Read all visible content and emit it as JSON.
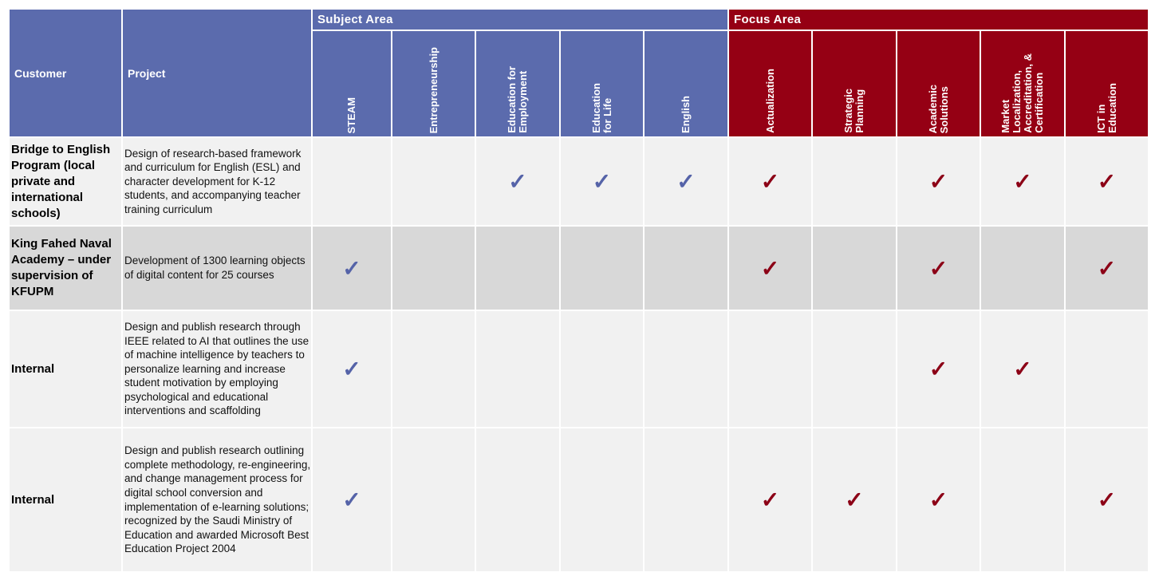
{
  "header": {
    "customer_label": "Customer",
    "project_label": "Project",
    "subject_area_label": "Subject Area",
    "focus_area_label": "Focus Area"
  },
  "subject_columns": [
    "STEAM",
    "Entrepreneurship",
    "Education for\nEmployment",
    "Education\nfor Life",
    "English"
  ],
  "focus_columns": [
    "Actualization",
    "Strategic\nPlanning",
    "Academic\nSolutions",
    "Market\nLocalization,\nAccreditation, &\nCertification",
    "ICT in\nEducation"
  ],
  "check_glyph": "✓",
  "colors": {
    "subject": "#5b6bad",
    "focus": "#950014",
    "subject_check": "#5563a8",
    "focus_check": "#8c0016"
  },
  "rows": [
    {
      "customer": "Bridge to English Program (local private and international schools)",
      "project": "Design of research-based framework and curriculum for English (ESL) and character development for K-12 students, and accompanying teacher training curriculum",
      "subject": [
        false,
        false,
        true,
        true,
        true
      ],
      "focus": [
        true,
        false,
        true,
        true,
        true
      ]
    },
    {
      "customer": "King Fahed Naval Academy – under supervision of KFUPM",
      "project": "Development of 1300 learning objects of digital content  for 25 courses",
      "subject": [
        true,
        false,
        false,
        false,
        false
      ],
      "focus": [
        true,
        false,
        true,
        false,
        true
      ]
    },
    {
      "customer": "Internal",
      "project": "Design and publish research through IEEE related to AI that outlines the use of machine intelligence by teachers to personalize learning and increase student motivation by employing psychological and educational interventions and scaffolding",
      "subject": [
        true,
        false,
        false,
        false,
        false
      ],
      "focus": [
        false,
        false,
        true,
        true,
        false
      ]
    },
    {
      "customer": "Internal",
      "project": "Design and publish research outlining complete methodology, re-engineering, and change management process for digital school conversion and implementation of e-learning solutions;  recognized by the Saudi Ministry of Education and awarded Microsoft Best Education Project 2004",
      "subject": [
        true,
        false,
        false,
        false,
        false
      ],
      "focus": [
        true,
        true,
        true,
        false,
        true
      ]
    }
  ]
}
